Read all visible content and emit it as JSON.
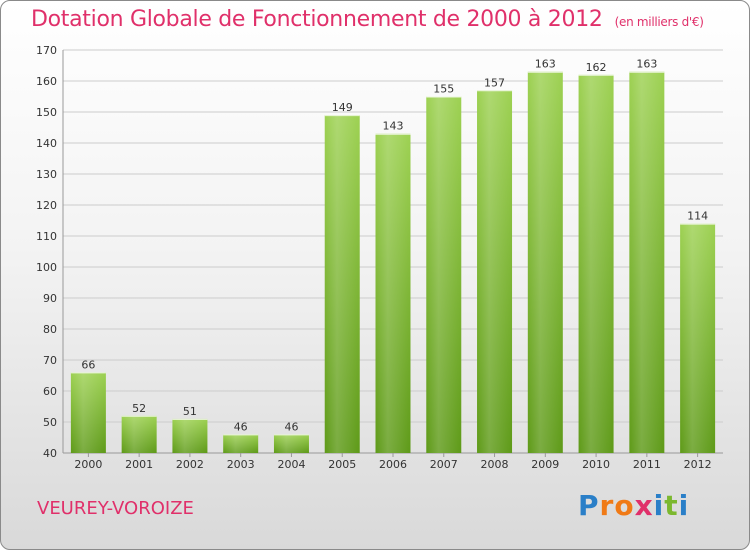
{
  "header": {
    "title": "Dotation Globale de Fonctionnement de 2000 à 2012",
    "unit": "(en milliers d'€)"
  },
  "footer": {
    "commune": "VEUREY-VOROIZE",
    "logo_letters": [
      "P",
      "r",
      "o",
      "x",
      "i",
      "t",
      "i"
    ],
    "logo_colors": [
      "#2a7fc8",
      "#f07a16",
      "#f07a16",
      "#e0306a",
      "#2a7fc8",
      "#7cb82f",
      "#2a7fc8"
    ]
  },
  "chart_data": {
    "type": "bar",
    "categories": [
      "2000",
      "2001",
      "2002",
      "2003",
      "2004",
      "2005",
      "2006",
      "2007",
      "2008",
      "2009",
      "2010",
      "2011",
      "2012"
    ],
    "values": [
      66,
      52,
      51,
      46,
      46,
      149,
      143,
      155,
      157,
      163,
      162,
      163,
      114
    ],
    "title": "Dotation Globale de Fonctionnement de 2000 à 2012",
    "subtitle": "(en milliers d'€)",
    "xlabel": "",
    "ylabel": "",
    "ylim": [
      40,
      170
    ],
    "yticks": [
      40,
      50,
      60,
      70,
      80,
      90,
      100,
      110,
      120,
      130,
      140,
      150,
      160,
      170
    ],
    "grid": true,
    "bar_color": "#7cb82f",
    "bar_color_light": "#9dd152",
    "bar_color_dark": "#5e9a18"
  }
}
